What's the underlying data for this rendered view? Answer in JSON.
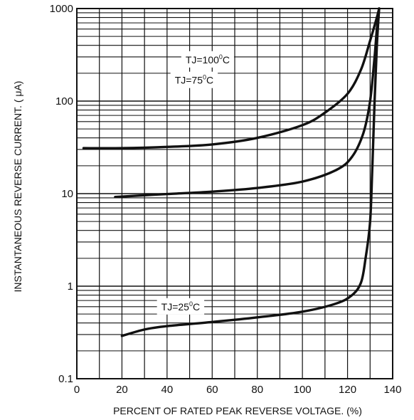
{
  "chart_data": {
    "type": "line",
    "title": "",
    "xlabel": "PERCENT OF RATED PEAK REVERSE VOLTAGE. (%)",
    "ylabel": "INSTANTANEOUS REVERSE CURRENT. ( μA)",
    "xlim": [
      0,
      140
    ],
    "ylim": [
      0.1,
      1000
    ],
    "yscale": "log",
    "grid": true,
    "x_ticks": [
      "0",
      "20",
      "40",
      "60",
      "80",
      "100",
      "120",
      "140"
    ],
    "y_ticks": [
      "0.1",
      "1",
      "10",
      "100",
      "1000"
    ],
    "series": [
      {
        "name": "TJ=100°C",
        "label_main": "TJ=100",
        "label_sup": "0",
        "label_tail": "C",
        "points": [
          [
            3,
            31
          ],
          [
            20,
            31
          ],
          [
            40,
            32
          ],
          [
            60,
            34
          ],
          [
            80,
            40
          ],
          [
            100,
            55
          ],
          [
            110,
            75
          ],
          [
            120,
            120
          ],
          [
            126,
            220
          ],
          [
            130,
            450
          ],
          [
            133,
            800
          ],
          [
            134,
            1000
          ]
        ]
      },
      {
        "name": "TJ=75°C",
        "label_main": "TJ=75",
        "label_sup": "0",
        "label_tail": "C",
        "points": [
          [
            17,
            9.2
          ],
          [
            30,
            9.6
          ],
          [
            40,
            9.9
          ],
          [
            60,
            10.5
          ],
          [
            80,
            11.5
          ],
          [
            100,
            13.5
          ],
          [
            115,
            18
          ],
          [
            122,
            25
          ],
          [
            127,
            45
          ],
          [
            130,
            100
          ],
          [
            132,
            300
          ],
          [
            133,
            600
          ],
          [
            134,
            1000
          ]
        ]
      },
      {
        "name": "TJ=25°C",
        "label_main": "TJ=25",
        "label_sup": "0",
        "label_tail": "C",
        "points": [
          [
            20,
            0.29
          ],
          [
            30,
            0.34
          ],
          [
            40,
            0.37
          ],
          [
            60,
            0.41
          ],
          [
            80,
            0.46
          ],
          [
            100,
            0.53
          ],
          [
            115,
            0.65
          ],
          [
            122,
            0.8
          ],
          [
            126,
            1.1
          ],
          [
            128,
            2
          ],
          [
            130,
            5
          ],
          [
            131,
            20
          ],
          [
            132,
            100
          ],
          [
            133,
            400
          ],
          [
            134,
            1000
          ]
        ]
      }
    ]
  }
}
